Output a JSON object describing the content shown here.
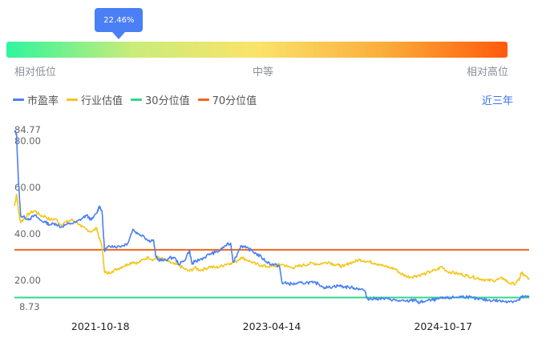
{
  "percentile": {
    "label": "22.46%",
    "value": 22.46
  },
  "scale_labels": {
    "low": "相对低位",
    "mid": "中等",
    "high": "相对高位"
  },
  "period_selector": "近三年",
  "colors": {
    "pe": "#4a7ff5",
    "industry": "#f5c518",
    "p30": "#2ed98a",
    "p70": "#f26419",
    "accent": "#4a7ff5"
  },
  "chart_data": {
    "type": "line",
    "legend_position": "top-left",
    "grid": false,
    "series": [
      {
        "name": "市盈率",
        "color": "#4a7ff5"
      },
      {
        "name": "行业估值",
        "color": "#f5c518"
      },
      {
        "name": "30分位值",
        "color": "#2ed98a",
        "value": 12.7
      },
      {
        "name": "70分位值",
        "color": "#f26419",
        "value": 33.2
      }
    ],
    "ylim": [
      8.73,
      84.77
    ],
    "y_ticks": [
      "84.77",
      "80.00",
      "60.00",
      "40.00",
      "20.00",
      "8.73"
    ],
    "y_tick_values": [
      84.77,
      80,
      60,
      40,
      20,
      8.73
    ],
    "x_ticks": [
      "2021-10-18",
      "2023-04-14",
      "2024-10-17"
    ],
    "x_tick_positions": [
      0.167,
      0.5,
      0.833
    ],
    "pe_points": [
      [
        0.0,
        84.0
      ],
      [
        0.004,
        83.0
      ],
      [
        0.008,
        62.0
      ],
      [
        0.012,
        48.0
      ],
      [
        0.02,
        47.0
      ],
      [
        0.03,
        46.5
      ],
      [
        0.04,
        48.0
      ],
      [
        0.05,
        46.0
      ],
      [
        0.06,
        45.0
      ],
      [
        0.07,
        44.0
      ],
      [
        0.08,
        44.5
      ],
      [
        0.09,
        43.0
      ],
      [
        0.1,
        44.0
      ],
      [
        0.11,
        44.5
      ],
      [
        0.12,
        45.0
      ],
      [
        0.13,
        46.5
      ],
      [
        0.14,
        48.0
      ],
      [
        0.15,
        46.0
      ],
      [
        0.16,
        49.0
      ],
      [
        0.165,
        52.0
      ],
      [
        0.17,
        50.0
      ],
      [
        0.175,
        33.0
      ],
      [
        0.18,
        34.0
      ],
      [
        0.19,
        35.0
      ],
      [
        0.2,
        34.5
      ],
      [
        0.21,
        35.0
      ],
      [
        0.22,
        36.0
      ],
      [
        0.23,
        42.0
      ],
      [
        0.24,
        40.0
      ],
      [
        0.25,
        39.5
      ],
      [
        0.26,
        37.0
      ],
      [
        0.27,
        37.5
      ],
      [
        0.275,
        30.0
      ],
      [
        0.28,
        29.0
      ],
      [
        0.29,
        28.5
      ],
      [
        0.3,
        29.5
      ],
      [
        0.31,
        30.0
      ],
      [
        0.32,
        27.0
      ],
      [
        0.33,
        28.5
      ],
      [
        0.34,
        33.0
      ],
      [
        0.345,
        27.0
      ],
      [
        0.35,
        28.0
      ],
      [
        0.36,
        29.0
      ],
      [
        0.37,
        30.0
      ],
      [
        0.38,
        31.5
      ],
      [
        0.39,
        32.0
      ],
      [
        0.4,
        33.0
      ],
      [
        0.41,
        35.0
      ],
      [
        0.42,
        36.0
      ],
      [
        0.425,
        28.0
      ],
      [
        0.43,
        30.0
      ],
      [
        0.44,
        35.0
      ],
      [
        0.45,
        34.0
      ],
      [
        0.46,
        33.0
      ],
      [
        0.47,
        31.5
      ],
      [
        0.48,
        30.0
      ],
      [
        0.49,
        28.0
      ],
      [
        0.5,
        27.0
      ],
      [
        0.51,
        26.5
      ],
      [
        0.515,
        26.0
      ],
      [
        0.52,
        19.0
      ],
      [
        0.53,
        18.8
      ],
      [
        0.54,
        18.5
      ],
      [
        0.55,
        18.7
      ],
      [
        0.56,
        18.9
      ],
      [
        0.57,
        19.2
      ],
      [
        0.58,
        19.0
      ],
      [
        0.59,
        18.7
      ],
      [
        0.6,
        17.2
      ],
      [
        0.61,
        17.0
      ],
      [
        0.62,
        17.5
      ],
      [
        0.63,
        17.8
      ],
      [
        0.64,
        17.3
      ],
      [
        0.65,
        17.1
      ],
      [
        0.66,
        16.8
      ],
      [
        0.67,
        16.5
      ],
      [
        0.68,
        15.8
      ],
      [
        0.685,
        12.5
      ],
      [
        0.69,
        12.0
      ],
      [
        0.7,
        12.2
      ],
      [
        0.71,
        12.3
      ],
      [
        0.72,
        12.1
      ],
      [
        0.73,
        12.0
      ],
      [
        0.74,
        11.5
      ],
      [
        0.75,
        11.2
      ],
      [
        0.76,
        11.0
      ],
      [
        0.77,
        11.4
      ],
      [
        0.78,
        11.8
      ],
      [
        0.785,
        10.2
      ],
      [
        0.79,
        10.8
      ],
      [
        0.8,
        11.3
      ],
      [
        0.81,
        11.5
      ],
      [
        0.82,
        11.9
      ],
      [
        0.83,
        12.3
      ],
      [
        0.84,
        12.4
      ],
      [
        0.85,
        12.7
      ],
      [
        0.86,
        12.9
      ],
      [
        0.87,
        13.1
      ],
      [
        0.88,
        13.0
      ],
      [
        0.89,
        12.5
      ],
      [
        0.9,
        12.0
      ],
      [
        0.91,
        11.8
      ],
      [
        0.92,
        11.6
      ],
      [
        0.93,
        11.5
      ],
      [
        0.94,
        11.3
      ],
      [
        0.95,
        11.0
      ],
      [
        0.96,
        11.2
      ],
      [
        0.97,
        11.1
      ],
      [
        0.98,
        11.5
      ],
      [
        0.985,
        12.8
      ],
      [
        0.99,
        13.0
      ],
      [
        1.0,
        12.9
      ]
    ],
    "industry_points": [
      [
        0.0,
        52.0
      ],
      [
        0.004,
        57.0
      ],
      [
        0.008,
        50.0
      ],
      [
        0.012,
        45.0
      ],
      [
        0.02,
        47.0
      ],
      [
        0.03,
        49.0
      ],
      [
        0.04,
        50.0
      ],
      [
        0.05,
        48.0
      ],
      [
        0.06,
        47.5
      ],
      [
        0.07,
        46.0
      ],
      [
        0.08,
        46.5
      ],
      [
        0.09,
        44.0
      ],
      [
        0.1,
        45.0
      ],
      [
        0.11,
        46.0
      ],
      [
        0.12,
        45.5
      ],
      [
        0.13,
        43.0
      ],
      [
        0.14,
        42.0
      ],
      [
        0.15,
        41.0
      ],
      [
        0.16,
        42.5
      ],
      [
        0.165,
        38.0
      ],
      [
        0.17,
        35.0
      ],
      [
        0.175,
        24.0
      ],
      [
        0.18,
        23.0
      ],
      [
        0.19,
        24.0
      ],
      [
        0.2,
        25.0
      ],
      [
        0.21,
        26.0
      ],
      [
        0.22,
        27.0
      ],
      [
        0.23,
        28.0
      ],
      [
        0.24,
        27.5
      ],
      [
        0.25,
        29.0
      ],
      [
        0.26,
        30.0
      ],
      [
        0.27,
        29.0
      ],
      [
        0.28,
        30.0
      ],
      [
        0.29,
        29.0
      ],
      [
        0.3,
        28.0
      ],
      [
        0.31,
        27.0
      ],
      [
        0.32,
        26.5
      ],
      [
        0.33,
        25.0
      ],
      [
        0.34,
        24.0
      ],
      [
        0.35,
        25.5
      ],
      [
        0.36,
        24.5
      ],
      [
        0.37,
        25.0
      ],
      [
        0.38,
        26.0
      ],
      [
        0.39,
        25.5
      ],
      [
        0.4,
        26.0
      ],
      [
        0.41,
        27.0
      ],
      [
        0.42,
        27.5
      ],
      [
        0.43,
        28.0
      ],
      [
        0.44,
        30.0
      ],
      [
        0.45,
        29.0
      ],
      [
        0.46,
        28.0
      ],
      [
        0.47,
        27.0
      ],
      [
        0.48,
        26.5
      ],
      [
        0.49,
        26.0
      ],
      [
        0.5,
        26.0
      ],
      [
        0.51,
        26.5
      ],
      [
        0.52,
        27.0
      ],
      [
        0.53,
        26.0
      ],
      [
        0.54,
        25.5
      ],
      [
        0.55,
        26.0
      ],
      [
        0.56,
        26.5
      ],
      [
        0.57,
        27.0
      ],
      [
        0.58,
        27.5
      ],
      [
        0.59,
        27.0
      ],
      [
        0.6,
        27.5
      ],
      [
        0.61,
        28.0
      ],
      [
        0.62,
        27.0
      ],
      [
        0.63,
        26.5
      ],
      [
        0.64,
        26.0
      ],
      [
        0.65,
        27.5
      ],
      [
        0.66,
        28.0
      ],
      [
        0.67,
        29.0
      ],
      [
        0.68,
        28.5
      ],
      [
        0.69,
        28.0
      ],
      [
        0.7,
        27.5
      ],
      [
        0.71,
        27.0
      ],
      [
        0.72,
        26.0
      ],
      [
        0.73,
        25.5
      ],
      [
        0.74,
        25.0
      ],
      [
        0.75,
        23.0
      ],
      [
        0.76,
        22.0
      ],
      [
        0.77,
        21.5
      ],
      [
        0.78,
        22.0
      ],
      [
        0.79,
        22.5
      ],
      [
        0.8,
        23.0
      ],
      [
        0.81,
        24.0
      ],
      [
        0.82,
        24.5
      ],
      [
        0.83,
        26.0
      ],
      [
        0.84,
        24.0
      ],
      [
        0.85,
        23.5
      ],
      [
        0.86,
        23.0
      ],
      [
        0.87,
        22.5
      ],
      [
        0.88,
        22.0
      ],
      [
        0.89,
        21.5
      ],
      [
        0.9,
        21.0
      ],
      [
        0.91,
        20.5
      ],
      [
        0.92,
        20.0
      ],
      [
        0.93,
        20.0
      ],
      [
        0.94,
        20.5
      ],
      [
        0.95,
        21.0
      ],
      [
        0.96,
        19.0
      ],
      [
        0.97,
        18.5
      ],
      [
        0.98,
        20.0
      ],
      [
        0.985,
        23.5
      ],
      [
        0.99,
        22.0
      ],
      [
        1.0,
        21.0
      ]
    ]
  }
}
